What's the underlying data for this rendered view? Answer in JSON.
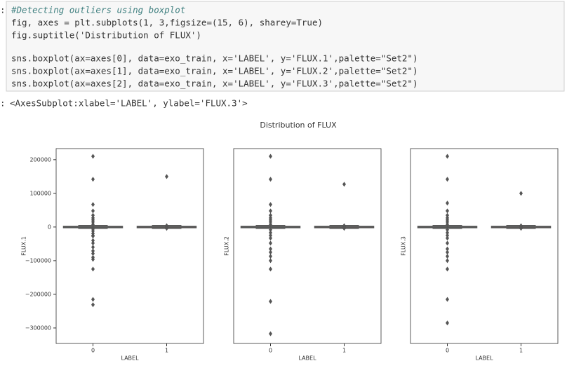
{
  "cell": {
    "prompt": ":",
    "lines": [
      "#Detecting outliers using boxplot",
      "fig, axes = plt.subplots(1, 3,figsize=(15, 6), sharey=True)",
      "fig.suptitle('Distribution of FLUX')",
      "sns.boxplot(ax=axes[0], data=exo_train, x='LABEL', y='FLUX.1',palette=\"Set2\")",
      "sns.boxplot(ax=axes[1], data=exo_train, x='LABEL', y='FLUX.2',palette=\"Set2\")",
      "sns.boxplot(ax=axes[2], data=exo_train, x='LABEL', y='FLUX.3',palette=\"Set2\")"
    ]
  },
  "output": {
    "prompt": ":",
    "text": "<AxesSubplot:xlabel='LABEL', ylabel='FLUX.3'>"
  },
  "figure": {
    "suptitle": "Distribution of FLUX"
  },
  "chart_data": [
    {
      "type": "box",
      "xlabel": "LABEL",
      "ylabel": "FLUX.1",
      "categories": [
        "0",
        "1"
      ],
      "colors": [
        "#66c2a5",
        "#fc8d62"
      ],
      "ylim": [
        -346000,
        233000
      ],
      "yticks": [
        {
          "value": -300000,
          "label": "−300000"
        },
        {
          "value": -200000,
          "label": "−200000"
        },
        {
          "value": -100000,
          "label": "−100000"
        },
        0,
        100000,
        200000
      ],
      "boxes": [
        {
          "q1": -2000,
          "median": 0,
          "q3": 2000,
          "whislo": -5000,
          "whishi": 5000,
          "fliers": [
            210000,
            142000,
            67000,
            48000,
            35000,
            27000,
            21000,
            15000,
            8000,
            -6000,
            -12000,
            -19000,
            -25000,
            -27000,
            -40000,
            -48000,
            -60000,
            -71000,
            -79000,
            -90000,
            -96000,
            -125000,
            -215000,
            -231000
          ]
        },
        {
          "q1": -2000,
          "median": 0,
          "q3": 2000,
          "whislo": -5000,
          "whishi": 5000,
          "fliers": [
            150000,
            4000,
            -4000
          ]
        }
      ]
    },
    {
      "type": "box",
      "xlabel": "LABEL",
      "ylabel": "FLUX.2",
      "categories": [
        "0",
        "1"
      ],
      "colors": [
        "#66c2a5",
        "#fc8d62"
      ],
      "ylim": [
        -346000,
        233000
      ],
      "boxes": [
        {
          "q1": -2000,
          "median": 0,
          "q3": 2000,
          "whislo": -5000,
          "whishi": 5000,
          "fliers": [
            210000,
            142000,
            67000,
            48000,
            35000,
            27000,
            21000,
            15000,
            8000,
            -8000,
            -17000,
            -25000,
            -33000,
            -48000,
            -65000,
            -75000,
            -87000,
            -100000,
            -125000,
            -221000,
            -317000
          ]
        },
        {
          "q1": -2000,
          "median": 0,
          "q3": 2000,
          "whislo": -5000,
          "whishi": 5000,
          "fliers": [
            127000,
            4000,
            -4000
          ]
        }
      ]
    },
    {
      "type": "box",
      "xlabel": "LABEL",
      "ylabel": "FLUX.3",
      "categories": [
        "0",
        "1"
      ],
      "colors": [
        "#66c2a5",
        "#fc8d62"
      ],
      "ylim": [
        -346000,
        233000
      ],
      "boxes": [
        {
          "q1": -2000,
          "median": 0,
          "q3": 2000,
          "whislo": -5000,
          "whishi": 5000,
          "fliers": [
            210000,
            142000,
            71000,
            48000,
            35000,
            27000,
            21000,
            15000,
            8000,
            -8000,
            -17000,
            -25000,
            -33000,
            -48000,
            -65000,
            -75000,
            -87000,
            -100000,
            -125000,
            -215000,
            -285000
          ]
        },
        {
          "q1": -2000,
          "median": 0,
          "q3": 2000,
          "whislo": -5000,
          "whishi": 5000,
          "fliers": [
            100000,
            4000,
            -4000
          ]
        }
      ]
    }
  ]
}
